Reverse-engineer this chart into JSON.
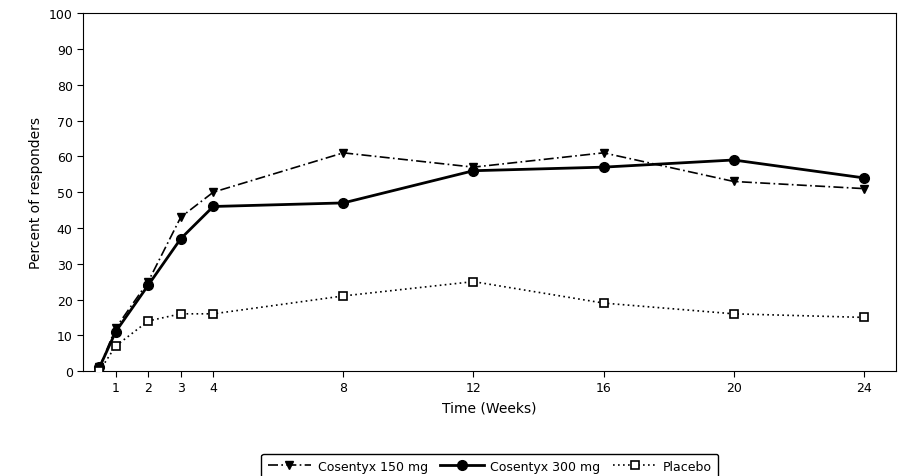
{
  "weeks": [
    0.5,
    1,
    2,
    3,
    4,
    8,
    12,
    16,
    20,
    24
  ],
  "cosentyx_150": [
    1,
    12,
    25,
    43,
    50,
    61,
    57,
    61,
    53,
    51
  ],
  "cosentyx_300": [
    1,
    11,
    24,
    37,
    46,
    47,
    56,
    57,
    59,
    54
  ],
  "placebo": [
    0,
    7,
    14,
    16,
    16,
    21,
    25,
    19,
    16,
    15
  ],
  "xlabel": "Time (Weeks)",
  "ylabel": "Percent of responders",
  "ylim": [
    0,
    100
  ],
  "xlim": [
    0,
    25
  ],
  "yticks": [
    0,
    10,
    20,
    30,
    40,
    50,
    60,
    70,
    80,
    90,
    100
  ],
  "xticks": [
    1,
    2,
    3,
    4,
    8,
    12,
    16,
    20,
    24
  ],
  "legend_labels": [
    "Cosentyx 150 mg",
    "Cosentyx 300 mg",
    "Placebo"
  ],
  "line_color": "#000000",
  "background_color": "#ffffff"
}
